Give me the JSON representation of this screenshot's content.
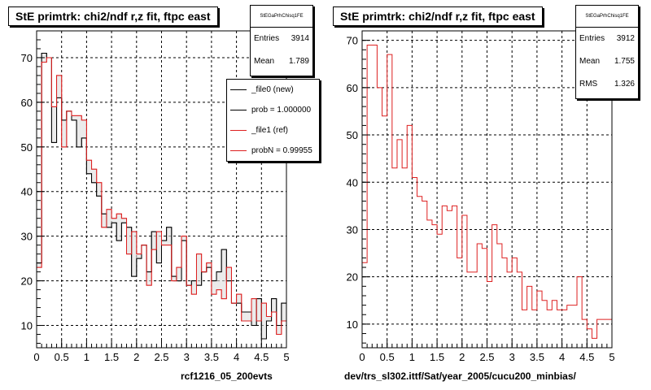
{
  "chart_data": [
    {
      "type": "step",
      "title": "StE primtrk: chi2/ndf r,z fit, ftpc east",
      "xlim": [
        0,
        5
      ],
      "ylim": [
        5,
        76
      ],
      "xticks": [
        "0",
        "0.5",
        "1",
        "1.5",
        "2",
        "2.5",
        "3",
        "3.5",
        "4",
        "4.5",
        "5"
      ],
      "yticks": [
        "10",
        "20",
        "30",
        "40",
        "50",
        "60",
        "70"
      ],
      "grid": true,
      "x": [
        0.05,
        0.15,
        0.25,
        0.35,
        0.45,
        0.55,
        0.65,
        0.75,
        0.85,
        0.95,
        1.05,
        1.15,
        1.25,
        1.35,
        1.45,
        1.55,
        1.65,
        1.75,
        1.85,
        1.95,
        2.05,
        2.15,
        2.25,
        2.35,
        2.45,
        2.55,
        2.65,
        2.75,
        2.85,
        2.95,
        3.05,
        3.15,
        3.25,
        3.35,
        3.45,
        3.55,
        3.65,
        3.75,
        3.85,
        3.95,
        4.05,
        4.15,
        4.25,
        4.35,
        4.45,
        4.55,
        4.65,
        4.75,
        4.85,
        4.95
      ],
      "series": [
        {
          "name": "_file0 (new)",
          "color": "#000000",
          "values": [
            24,
            71,
            70,
            51,
            61,
            56,
            58,
            56,
            50,
            52,
            44,
            42,
            39,
            35,
            32,
            33,
            29,
            33,
            32,
            21,
            25,
            28,
            22,
            31,
            24,
            29,
            32,
            21,
            20,
            29,
            19,
            20,
            19,
            22,
            23,
            20,
            22,
            27,
            20,
            15,
            15,
            13,
            13,
            10,
            16,
            7,
            11,
            16,
            10,
            15
          ]
        },
        {
          "name": "_file1 (ref)",
          "color": "#dd2020",
          "values": [
            23,
            69,
            70,
            59,
            66,
            50,
            58,
            57,
            57,
            56,
            47,
            45,
            42,
            32,
            36,
            34,
            35,
            34,
            26,
            31,
            26,
            28,
            19,
            27,
            31,
            28,
            28,
            20,
            23,
            30,
            19,
            17,
            26,
            22,
            24,
            17,
            18,
            16,
            23,
            15,
            17,
            11,
            11,
            16,
            11,
            15,
            12,
            13,
            8,
            11
          ]
        }
      ],
      "stats": {
        "name": "StEGaPrhChisq1FE",
        "entries": "3914",
        "mean": "1.789"
      },
      "legend": [
        "_file0 (new)",
        "prob = 1.000000",
        "_file1 (ref)",
        "probN = 0.99955"
      ],
      "footer": "rcf1216_05_200evts"
    },
    {
      "type": "step",
      "title": "StE primtrk: chi2/ndf r,z fit, ftpc east",
      "xlim": [
        0,
        5
      ],
      "ylim": [
        5,
        72
      ],
      "xticks": [
        "0",
        "0.5",
        "1",
        "1.5",
        "2",
        "2.5",
        "3",
        "3.5",
        "4",
        "4.5",
        "5"
      ],
      "yticks": [
        "10",
        "20",
        "30",
        "40",
        "50",
        "60",
        "70"
      ],
      "grid": true,
      "x": [
        0.05,
        0.15,
        0.25,
        0.35,
        0.45,
        0.55,
        0.65,
        0.75,
        0.85,
        0.95,
        1.05,
        1.15,
        1.25,
        1.35,
        1.45,
        1.55,
        1.65,
        1.75,
        1.85,
        1.95,
        2.05,
        2.15,
        2.25,
        2.35,
        2.45,
        2.55,
        2.65,
        2.75,
        2.85,
        2.95,
        3.05,
        3.15,
        3.25,
        3.35,
        3.45,
        3.55,
        3.65,
        3.75,
        3.85,
        3.95,
        4.05,
        4.15,
        4.25,
        4.35,
        4.45,
        4.55,
        4.65,
        4.75,
        4.85,
        4.95
      ],
      "series": [
        {
          "name": "",
          "color": "#dd2020",
          "values": [
            23,
            69,
            69,
            60,
            54,
            67,
            43,
            49,
            43,
            52,
            41,
            37,
            36,
            32,
            31,
            29,
            35,
            34,
            35,
            24,
            33,
            21,
            21,
            27,
            26,
            19,
            31,
            27,
            24,
            21,
            24,
            21,
            13,
            18,
            13,
            17,
            15,
            13,
            15,
            13,
            13,
            14,
            14,
            20,
            11,
            9,
            7,
            11,
            11,
            11
          ]
        }
      ],
      "stats": {
        "name": "StEGaPrhChisq1FE",
        "entries": "3912",
        "mean": "1.755",
        "rms": "1.326"
      },
      "footer": "dev/trs_sl302.ittf/Sat/year_2005/cucu200_minbias/"
    }
  ],
  "labels": {
    "entries": "Entries",
    "mean": "Mean",
    "rms": "RMS"
  }
}
